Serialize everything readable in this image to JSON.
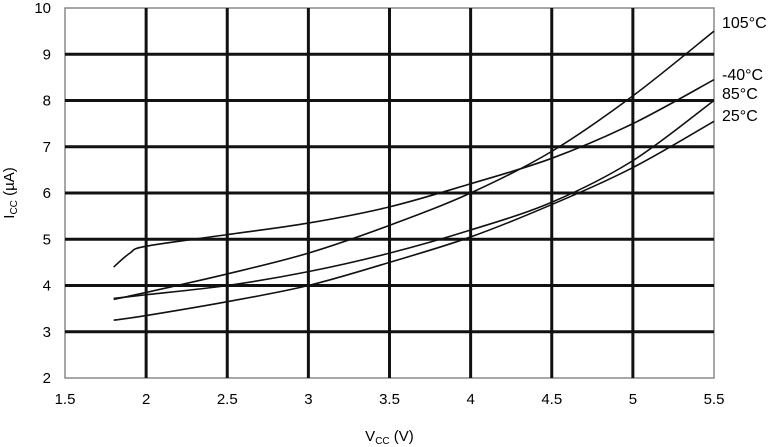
{
  "chart_data": {
    "type": "line",
    "title": "",
    "xlabel": {
      "main": "V",
      "sub": "CC",
      "unit": " (V)"
    },
    "ylabel": {
      "main": "I",
      "sub": "CC",
      "unit": " (µA)"
    },
    "xlim": [
      1.5,
      5.5
    ],
    "ylim": [
      2,
      10
    ],
    "xticks": [
      "1.5",
      "2",
      "2.5",
      "3",
      "3.5",
      "4",
      "4.5",
      "5",
      "5.5"
    ],
    "yticks": [
      "2",
      "3",
      "4",
      "5",
      "6",
      "7",
      "8",
      "9",
      "10"
    ],
    "grid": true,
    "legend": "inline-right",
    "series": [
      {
        "name": "105°C",
        "x": [
          1.8,
          2.0,
          2.5,
          3.0,
          3.5,
          4.0,
          4.5,
          5.0,
          5.5
        ],
        "y": [
          3.7,
          3.85,
          4.25,
          4.7,
          5.3,
          6.0,
          6.9,
          8.1,
          9.5
        ]
      },
      {
        "name": "-40°C",
        "x": [
          1.8,
          1.9,
          2.0,
          2.5,
          3.0,
          3.5,
          4.0,
          4.5,
          5.0,
          5.5
        ],
        "y": [
          4.4,
          4.7,
          4.85,
          5.1,
          5.35,
          5.7,
          6.2,
          6.75,
          7.5,
          8.45
        ]
      },
      {
        "name": "85°C",
        "x": [
          1.8,
          2.0,
          2.5,
          3.0,
          3.5,
          4.0,
          4.5,
          5.0,
          5.5
        ],
        "y": [
          3.72,
          3.8,
          4.0,
          4.3,
          4.7,
          5.2,
          5.8,
          6.7,
          8.0
        ]
      },
      {
        "name": "25°C",
        "x": [
          1.8,
          2.0,
          2.5,
          3.0,
          3.5,
          4.0,
          4.5,
          5.0,
          5.5
        ],
        "y": [
          3.25,
          3.35,
          3.65,
          4.0,
          4.5,
          5.05,
          5.75,
          6.55,
          7.55
        ]
      }
    ]
  }
}
